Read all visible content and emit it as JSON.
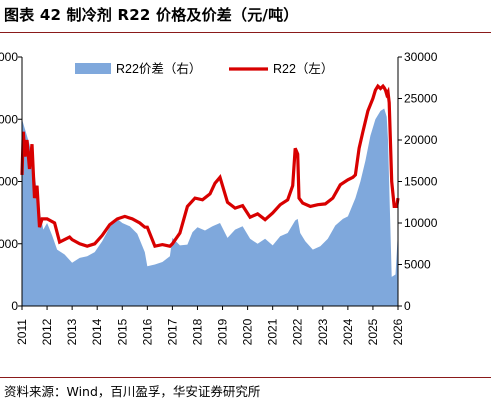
{
  "title": "图表 42 制冷剂 R22 价格及价差（元/吨）",
  "source": "资料来源：Wind，百川盈孚，华安证券研究所",
  "colors": {
    "area": "#7fa8dc",
    "line": "#d80000",
    "rule": "#8a1a1a"
  },
  "chart_data": {
    "type": "area",
    "title": "",
    "xlabel": "",
    "ylabel_left": "",
    "ylabel_right": "",
    "x_ticks": [
      "2011",
      "2012",
      "2013",
      "2014",
      "2015",
      "2016",
      "2017",
      "2018",
      "2019",
      "2020",
      "2021",
      "2022",
      "2023",
      "2024",
      "2025",
      "2026"
    ],
    "x_range": [
      2011,
      2026
    ],
    "left_ticks_visible": [
      "000",
      "000",
      "000",
      "000",
      "0"
    ],
    "right_ticks": [
      "30000",
      "25000",
      "20000",
      "15000",
      "10000",
      "5000",
      "0"
    ],
    "right_ylim": [
      0,
      30000
    ],
    "legend": {
      "position": "top",
      "area_label": "R22价差（右）",
      "line_label": "R22（左）"
    },
    "series": [
      {
        "name": "R22价差（右）",
        "axis": "right",
        "kind": "area",
        "x": [
          2011.0,
          2011.1,
          2011.3,
          2011.5,
          2011.7,
          2011.85,
          2012.0,
          2012.2,
          2012.4,
          2012.7,
          2013.0,
          2013.3,
          2013.6,
          2013.9,
          2014.2,
          2014.5,
          2014.8,
          2015.0,
          2015.3,
          2015.6,
          2015.9,
          2016.0,
          2016.3,
          2016.6,
          2016.9,
          2017.0,
          2017.3,
          2017.6,
          2017.8,
          2018.0,
          2018.3,
          2018.6,
          2018.9,
          2019.2,
          2019.5,
          2019.8,
          2020.1,
          2020.4,
          2020.7,
          2021.0,
          2021.3,
          2021.6,
          2021.9,
          2022.0,
          2022.1,
          2022.3,
          2022.6,
          2022.9,
          2023.2,
          2023.5,
          2023.8,
          2024.0,
          2024.3,
          2024.5,
          2024.7,
          2024.9,
          2025.1,
          2025.3,
          2025.45,
          2025.55,
          2025.6,
          2025.75,
          2025.9,
          2026.0
        ],
        "y": [
          22500,
          21500,
          19500,
          16000,
          11500,
          9200,
          10000,
          8500,
          6800,
          6200,
          5200,
          5800,
          6000,
          6500,
          7800,
          9500,
          10500,
          10000,
          9600,
          8700,
          6500,
          4800,
          5000,
          5300,
          6000,
          8200,
          7300,
          7400,
          8900,
          9500,
          9100,
          9600,
          10000,
          8200,
          9200,
          9600,
          8100,
          7500,
          8100,
          7300,
          8400,
          8800,
          10300,
          10500,
          8800,
          7800,
          6800,
          7200,
          8100,
          9700,
          10500,
          10800,
          13000,
          15000,
          17500,
          20500,
          22500,
          23500,
          23800,
          22800,
          20000,
          3500,
          3800,
          9000
        ]
      },
      {
        "name": "R22（左）",
        "axis": "right",
        "kind": "line",
        "x": [
          2011.0,
          2011.05,
          2011.12,
          2011.2,
          2011.3,
          2011.4,
          2011.5,
          2011.6,
          2011.7,
          2011.8,
          2012.0,
          2012.3,
          2012.5,
          2012.7,
          2012.9,
          2013.0,
          2013.3,
          2013.6,
          2013.9,
          2014.2,
          2014.5,
          2014.8,
          2015.1,
          2015.4,
          2015.7,
          2015.9,
          2016.0,
          2016.3,
          2016.6,
          2016.9,
          2017.0,
          2017.3,
          2017.6,
          2017.9,
          2018.2,
          2018.5,
          2018.7,
          2018.9,
          2019.2,
          2019.5,
          2019.8,
          2020.1,
          2020.4,
          2020.7,
          2021.0,
          2021.3,
          2021.6,
          2021.8,
          2021.9,
          2022.0,
          2022.05,
          2022.2,
          2022.5,
          2022.8,
          2023.1,
          2023.4,
          2023.7,
          2024.0,
          2024.2,
          2024.3,
          2024.45,
          2024.6,
          2024.8,
          2025.0,
          2025.1,
          2025.2,
          2025.3,
          2025.4,
          2025.45,
          2025.5,
          2025.55,
          2025.6,
          2025.65,
          2025.75,
          2025.85,
          2025.95,
          2026.0
        ],
        "y": [
          15800,
          21000,
          18000,
          20000,
          16500,
          19500,
          13000,
          14500,
          9500,
          10500,
          10500,
          10000,
          7700,
          8000,
          8300,
          8000,
          7500,
          7200,
          7500,
          8500,
          9800,
          10500,
          10800,
          10500,
          10000,
          9500,
          9500,
          7200,
          7400,
          7200,
          7500,
          8800,
          12000,
          13000,
          12800,
          13500,
          14800,
          15500,
          12500,
          11800,
          12100,
          10700,
          11100,
          10400,
          11200,
          12200,
          12800,
          14500,
          19000,
          18300,
          13000,
          12400,
          12000,
          12200,
          12300,
          13000,
          14600,
          15200,
          15500,
          15800,
          19000,
          21000,
          23500,
          25000,
          26000,
          26500,
          26200,
          26500,
          26300,
          26000,
          25500,
          25800,
          24500,
          15000,
          12000,
          12000,
          13000
        ]
      }
    ]
  }
}
